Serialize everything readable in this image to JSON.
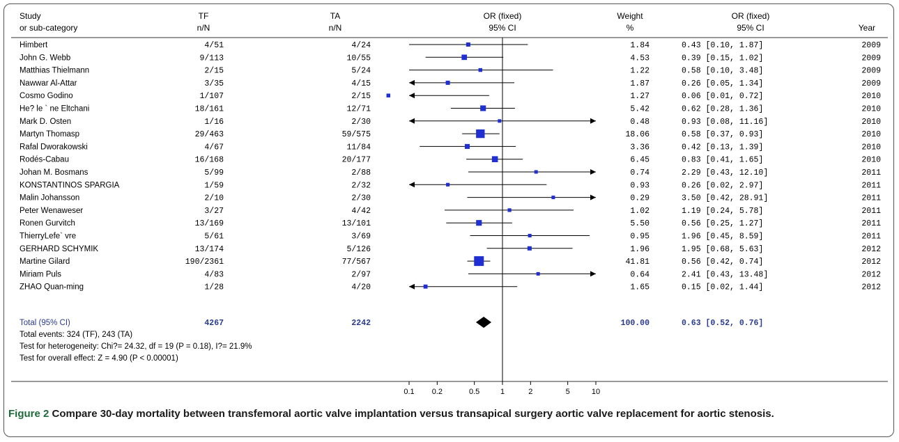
{
  "headers": {
    "study": [
      "Study",
      "or sub-category"
    ],
    "tf": [
      "TF",
      "n/N"
    ],
    "ta": [
      "TA",
      "n/N"
    ],
    "or_plot": [
      "OR (fixed)",
      "95% CI"
    ],
    "weight": [
      "Weight",
      "%"
    ],
    "or_text": [
      "OR (fixed)",
      "95% CI"
    ],
    "year": "Year"
  },
  "total_row": {
    "label": "Total (95% CI)",
    "tf": "4267",
    "ta": "2242",
    "weight": "100.00",
    "ci": "0.63 [0.52, 0.76]"
  },
  "footer": [
    "Total events: 324 (TF), 243 (TA)",
    "Test for heterogeneity: Chi?= 24.32, df = 19 (P = 0.18), I?= 21.9%",
    "Test for overall effect: Z = 4.90 (P < 0.00001)"
  ],
  "caption": {
    "label": "Figure 2",
    "text": "Compare 30-day mortality between transfemoral aortic valve implantation versus transapical surgery aortic valve replacement for aortic stenosis."
  },
  "chart_data": {
    "type": "forest",
    "scale": "log",
    "xlim": [
      0.1,
      10
    ],
    "x_ticks": [
      0.1,
      0.2,
      0.5,
      1,
      2,
      5,
      10
    ],
    "x_tick_labels": [
      "0.1",
      "0.2",
      "0.5",
      "1",
      "2",
      "5",
      "10"
    ],
    "reference_line": 1,
    "studies": [
      {
        "name": "Himbert",
        "tf": "4/51",
        "ta": "4/24",
        "weight": "1.84",
        "ci_text": "0.43 [0.10, 1.87]",
        "year": "2009",
        "or": 0.43,
        "lo": 0.1,
        "hi": 1.87,
        "w": 1.84
      },
      {
        "name": "John G. Webb",
        "tf": "9/113",
        "ta": "10/55",
        "weight": "4.53",
        "ci_text": "0.39 [0.15, 1.02]",
        "year": "2009",
        "or": 0.39,
        "lo": 0.15,
        "hi": 1.02,
        "w": 4.53
      },
      {
        "name": "Matthias Thielmann",
        "tf": "2/15",
        "ta": "5/24",
        "weight": "1.22",
        "ci_text": "0.58 [0.10, 3.48]",
        "year": "2009",
        "or": 0.58,
        "lo": 0.1,
        "hi": 3.48,
        "w": 1.22
      },
      {
        "name": "Nawwar Al-Attar",
        "tf": "3/35",
        "ta": "4/15",
        "weight": "1.87",
        "ci_text": "0.26 [0.05, 1.34]",
        "year": "2009",
        "or": 0.26,
        "lo": 0.05,
        "hi": 1.34,
        "w": 1.87
      },
      {
        "name": "Cosmo Godino",
        "tf": "1/107",
        "ta": "2/15",
        "weight": "1.27",
        "ci_text": "0.06 [0.01, 0.72]",
        "year": "2010",
        "or": 0.06,
        "lo": 0.01,
        "hi": 0.72,
        "w": 1.27
      },
      {
        "name": "He? le ` ne Eltchani",
        "tf": "18/161",
        "ta": "12/71",
        "weight": "5.42",
        "ci_text": "0.62 [0.28, 1.36]",
        "year": "2010",
        "or": 0.62,
        "lo": 0.28,
        "hi": 1.36,
        "w": 5.42
      },
      {
        "name": "Mark D. Osten",
        "tf": "1/16",
        "ta": "2/30",
        "weight": "0.48",
        "ci_text": "0.93 [0.08, 11.16]",
        "year": "2010",
        "or": 0.93,
        "lo": 0.08,
        "hi": 11.16,
        "w": 0.48
      },
      {
        "name": "Martyn Thomasp",
        "tf": "29/463",
        "ta": "59/575",
        "weight": "18.06",
        "ci_text": "0.58 [0.37, 0.93]",
        "year": "2010",
        "or": 0.58,
        "lo": 0.37,
        "hi": 0.93,
        "w": 18.06
      },
      {
        "name": "Rafal Dworakowski",
        "tf": "4/67",
        "ta": "11/84",
        "weight": "3.36",
        "ci_text": "0.42 [0.13, 1.39]",
        "year": "2010",
        "or": 0.42,
        "lo": 0.13,
        "hi": 1.39,
        "w": 3.36
      },
      {
        "name": "Rodés-Cabau",
        "tf": "16/168",
        "ta": "20/177",
        "weight": "6.45",
        "ci_text": "0.83 [0.41, 1.65]",
        "year": "2010",
        "or": 0.83,
        "lo": 0.41,
        "hi": 1.65,
        "w": 6.45
      },
      {
        "name": "Johan M. Bosmans",
        "tf": "5/99",
        "ta": "2/88",
        "weight": "0.74",
        "ci_text": "2.29 [0.43, 12.10]",
        "year": "2011",
        "or": 2.29,
        "lo": 0.43,
        "hi": 12.1,
        "w": 0.74
      },
      {
        "name": "KONSTANTINOS SPARGIA",
        "tf": "1/59",
        "ta": "2/32",
        "weight": "0.93",
        "ci_text": "0.26 [0.02, 2.97]",
        "year": "2011",
        "or": 0.26,
        "lo": 0.02,
        "hi": 2.97,
        "w": 0.93
      },
      {
        "name": "Malin Johansson",
        "tf": "2/10",
        "ta": "2/30",
        "weight": "0.29",
        "ci_text": "3.50 [0.42, 28.91]",
        "year": "2011",
        "or": 3.5,
        "lo": 0.42,
        "hi": 28.91,
        "w": 0.29
      },
      {
        "name": "Peter Wenaweser",
        "tf": "3/27",
        "ta": "4/42",
        "weight": "1.02",
        "ci_text": "1.19 [0.24, 5.78]",
        "year": "2011",
        "or": 1.19,
        "lo": 0.24,
        "hi": 5.78,
        "w": 1.02
      },
      {
        "name": "Ronen Gurvitch",
        "tf": "13/169",
        "ta": "13/101",
        "weight": "5.50",
        "ci_text": "0.56 [0.25, 1.27]",
        "year": "2011",
        "or": 0.56,
        "lo": 0.25,
        "hi": 1.27,
        "w": 5.5
      },
      {
        "name": "ThierryLefe` vre",
        "tf": "5/61",
        "ta": "3/69",
        "weight": "0.95",
        "ci_text": "1.96 [0.45, 8.59]",
        "year": "2011",
        "or": 1.96,
        "lo": 0.45,
        "hi": 8.59,
        "w": 0.95
      },
      {
        "name": "GERHARD SCHYMIK",
        "tf": "13/174",
        "ta": "5/126",
        "weight": "1.96",
        "ci_text": "1.95 [0.68, 5.63]",
        "year": "2012",
        "or": 1.95,
        "lo": 0.68,
        "hi": 5.63,
        "w": 1.96
      },
      {
        "name": "Martine Gilard",
        "tf": "190/2361",
        "ta": "77/567",
        "weight": "41.81",
        "ci_text": "0.56 [0.42, 0.74]",
        "year": "2012",
        "or": 0.56,
        "lo": 0.42,
        "hi": 0.74,
        "w": 41.81
      },
      {
        "name": "Miriam Puls",
        "tf": "4/83",
        "ta": "2/97",
        "weight": "0.64",
        "ci_text": "2.41 [0.43, 13.48]",
        "year": "2012",
        "or": 2.41,
        "lo": 0.43,
        "hi": 13.48,
        "w": 0.64
      },
      {
        "name": "ZHAO Quan-ming",
        "tf": "1/28",
        "ta": "4/20",
        "weight": "1.65",
        "ci_text": "0.15 [0.02, 1.44]",
        "year": "2012",
        "or": 0.15,
        "lo": 0.02,
        "hi": 1.44,
        "w": 1.65
      }
    ],
    "total": {
      "or": 0.63,
      "lo": 0.52,
      "hi": 0.76
    },
    "colors": {
      "marker": "#1f2fd1",
      "diamond": "#000000",
      "line": "#000000"
    }
  }
}
